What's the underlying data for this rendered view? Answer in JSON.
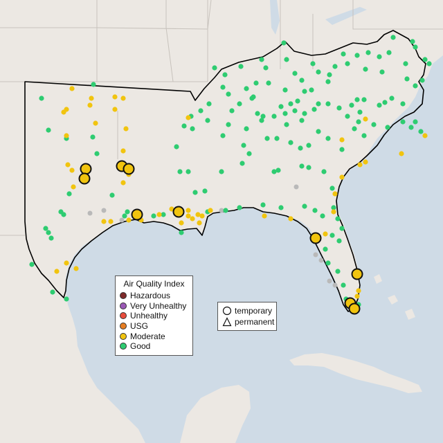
{
  "map": {
    "background_colors": {
      "water": "#cfdbe6",
      "land": "#ece8e3",
      "border": "#c7c2bc",
      "region_outline": "#000000"
    },
    "legend_aqi": {
      "title": "Air Quality Index",
      "items": [
        {
          "label": "Hazardous",
          "color": "#7e2a2a"
        },
        {
          "label": "Very Unhealthy",
          "color": "#9b59b6"
        },
        {
          "label": "Unhealthy",
          "color": "#e74c3c"
        },
        {
          "label": "USG",
          "color": "#e67e22"
        },
        {
          "label": "Moderate",
          "color": "#f1c40f"
        },
        {
          "label": "Good",
          "color": "#2ecc71"
        }
      ]
    },
    "legend_shape": {
      "items": [
        {
          "label": "temporary",
          "shape": "circle-icon"
        },
        {
          "label": "permanent",
          "shape": "triangle-icon"
        }
      ]
    }
  }
}
